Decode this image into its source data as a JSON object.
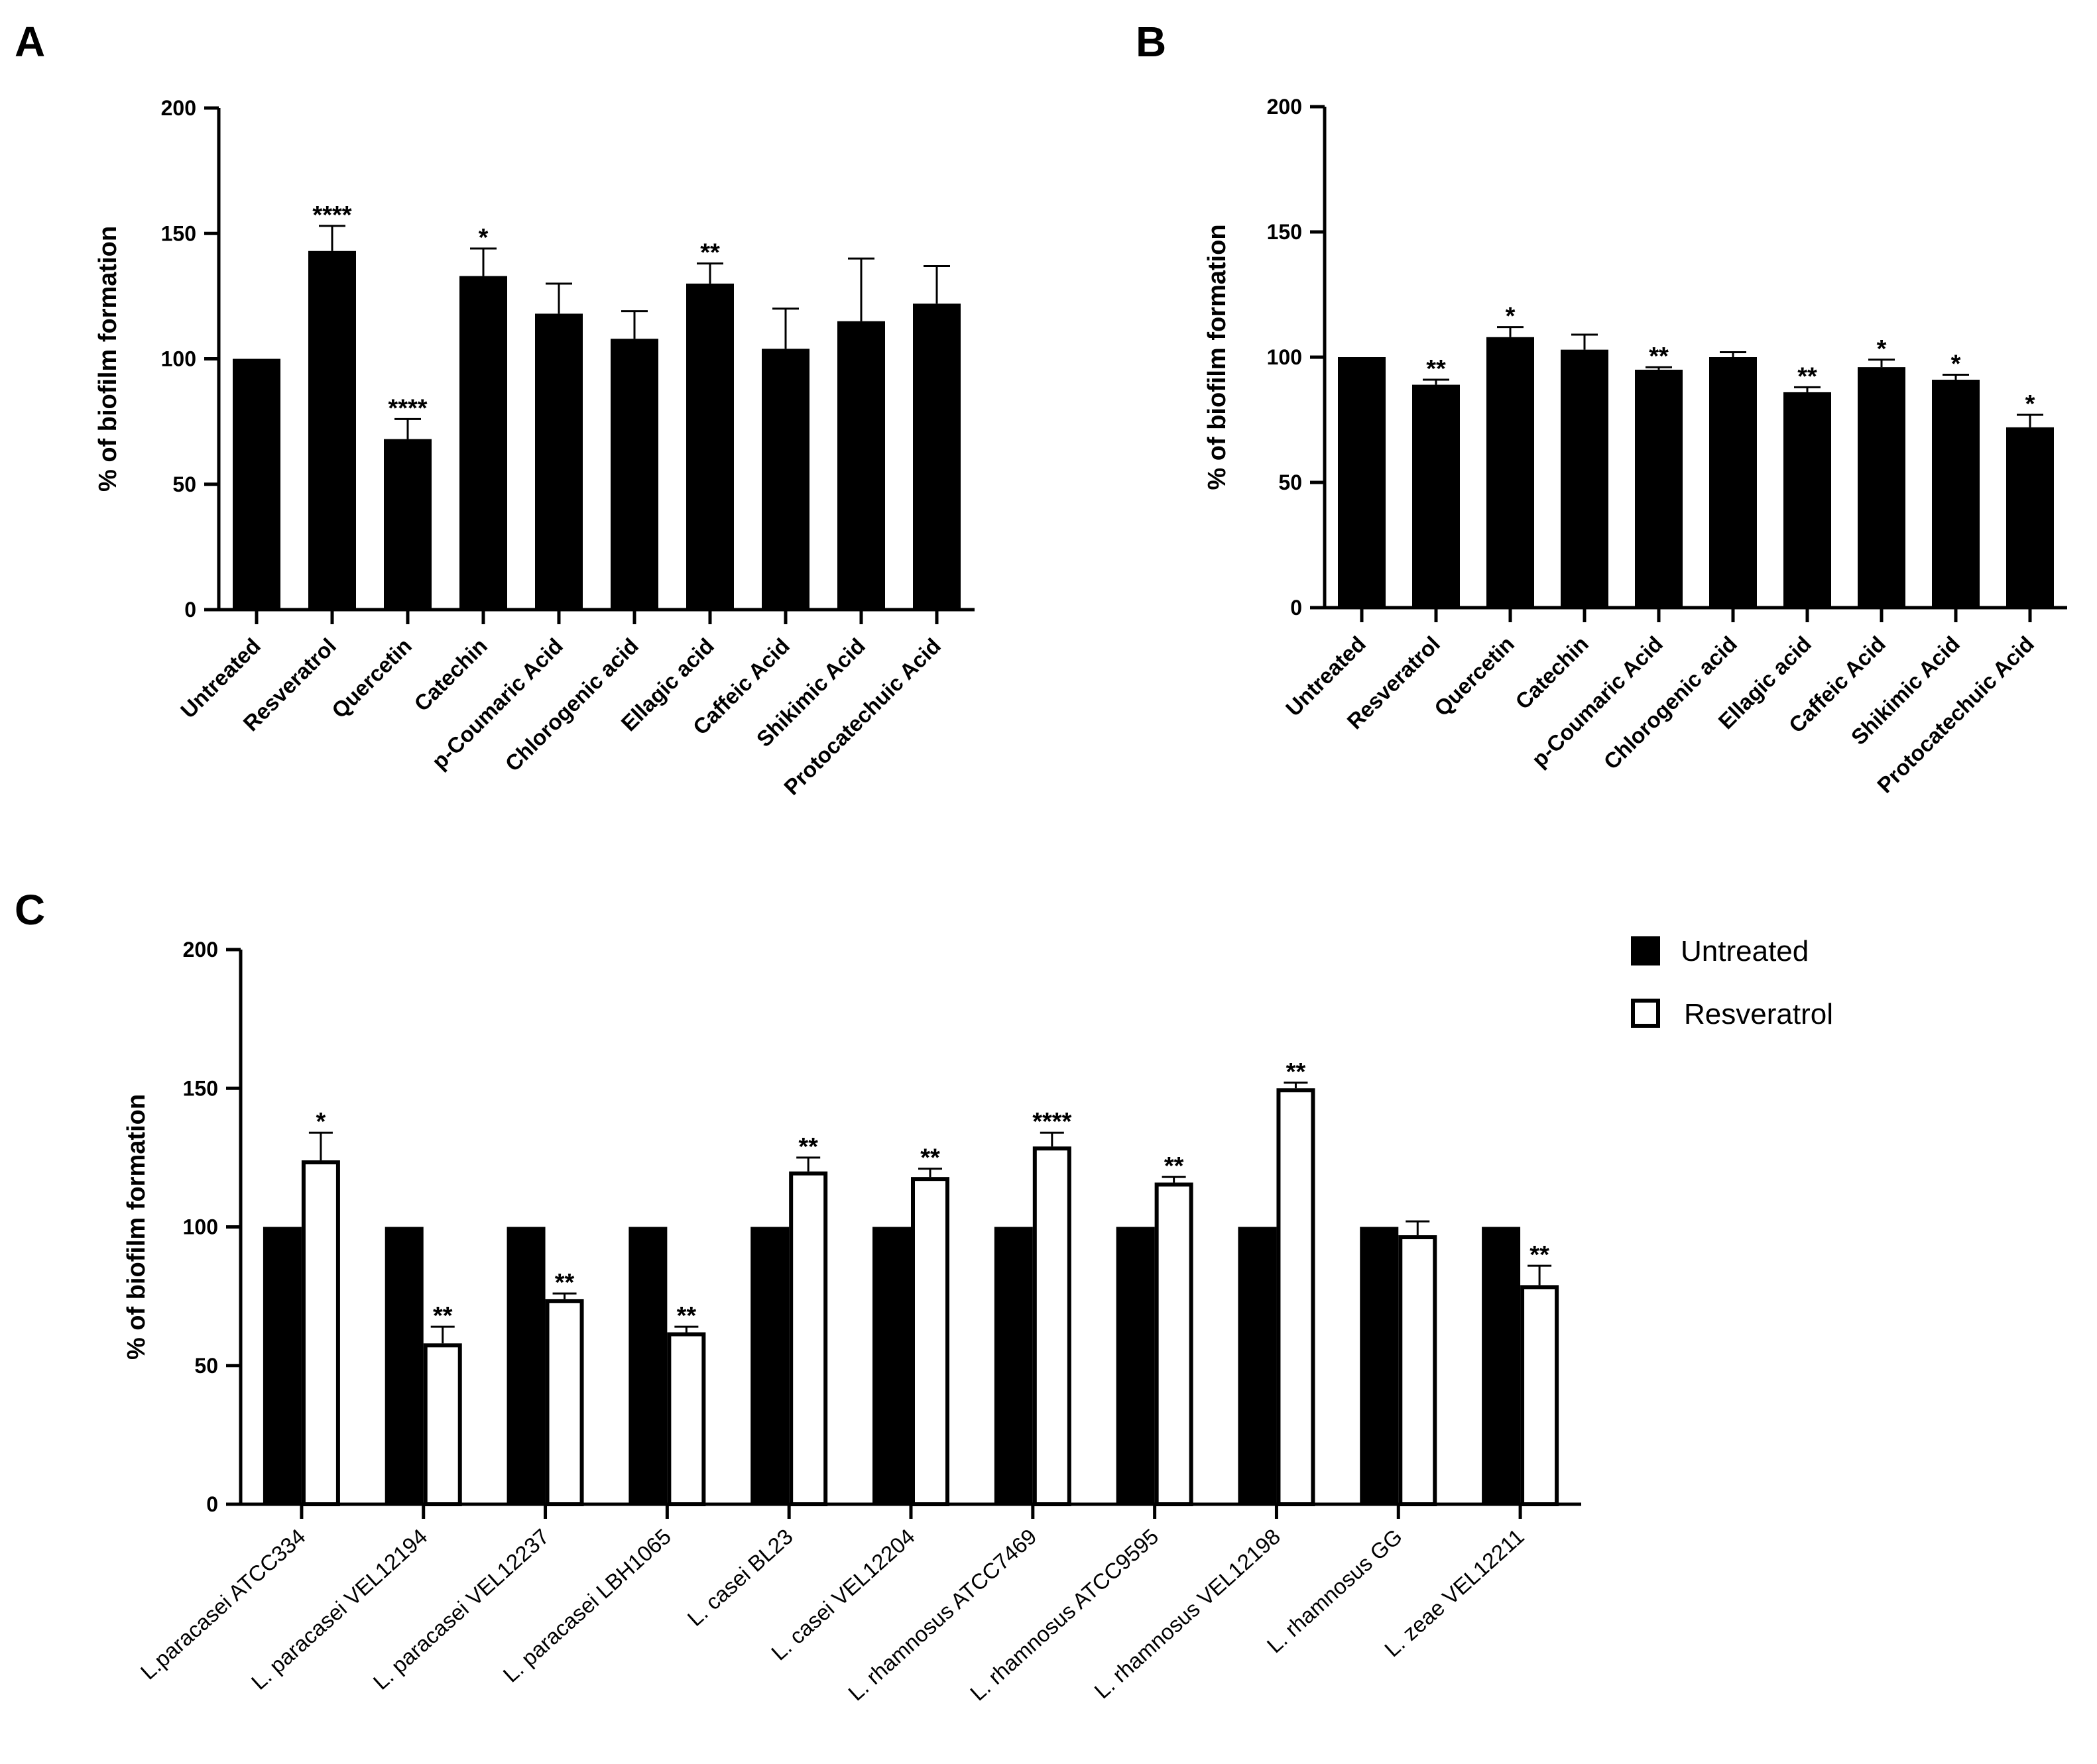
{
  "chart_data": [
    {
      "panel": "A",
      "type": "bar",
      "ylabel": "% of biofilm formation",
      "ylim": [
        0,
        200
      ],
      "yticks": [
        "0",
        "50",
        "100",
        "150",
        "200"
      ],
      "categories": [
        "Untreated",
        "Resveratrol",
        "Quercetin",
        "Catechin",
        "p-Coumaric Acid",
        "Chlorogenic acid",
        "Ellagic acid",
        "Caffeic Acid",
        "Shikimic Acid",
        "Protocatechuic Acid"
      ],
      "values": [
        100,
        143,
        68,
        133,
        118,
        108,
        130,
        104,
        115,
        122
      ],
      "errors": [
        0,
        10,
        8,
        11,
        12,
        11,
        8,
        16,
        25,
        15
      ],
      "significance": [
        "",
        "****",
        "****",
        "*",
        "",
        "",
        "**",
        "",
        "",
        ""
      ]
    },
    {
      "panel": "B",
      "type": "bar",
      "ylabel": "% of biofilm formation",
      "ylim": [
        0,
        200
      ],
      "yticks": [
        "0",
        "50",
        "100",
        "150",
        "200"
      ],
      "categories": [
        "Untreated",
        "Resveratrol",
        "Quercetin",
        "Catechin",
        "p-Coumaric Acid",
        "Chlorogenic acid",
        "Ellagic acid",
        "Caffeic Acid",
        "Shikimic Acid",
        "Protocatechuic Acid"
      ],
      "values": [
        100,
        89,
        108,
        103,
        95,
        100,
        86,
        96,
        91,
        72
      ],
      "errors": [
        0,
        2,
        4,
        6,
        1,
        2,
        2,
        3,
        2,
        5
      ],
      "significance": [
        "",
        "**",
        "*",
        "",
        "**",
        "",
        "**",
        "*",
        "*",
        "*"
      ]
    },
    {
      "panel": "C",
      "type": "bar",
      "ylabel": "% of biofilm formation",
      "ylim": [
        0,
        200
      ],
      "yticks": [
        "0",
        "50",
        "100",
        "150",
        "200"
      ],
      "categories": [
        "L.paracasei ATCC334",
        "L. paracasei VEL12194",
        "L. paracasei VEL12237",
        "L. paracasei LBH1065",
        "L. casei BL23",
        "L. casei VEL12204",
        "L. rhamnosus ATCC7469",
        "L. rhamnosus ATCC9595",
        "L. rhamnosus VEL12198",
        "L. rhamnosus GG",
        "L. zeae VEL12211"
      ],
      "legend": [
        "Untreated",
        "Resveratrol"
      ],
      "series": [
        {
          "name": "Untreated",
          "values": [
            100,
            100,
            100,
            100,
            100,
            100,
            100,
            100,
            100,
            100,
            100
          ],
          "errors": [
            0,
            0,
            0,
            0,
            0,
            0,
            0,
            0,
            0,
            0,
            0
          ]
        },
        {
          "name": "Resveratrol",
          "values": [
            124,
            58,
            74,
            62,
            120,
            118,
            129,
            116,
            150,
            97,
            79
          ],
          "errors": [
            10,
            6,
            2,
            2,
            5,
            3,
            5,
            2,
            2,
            5,
            7
          ]
        }
      ],
      "significance": [
        "*",
        "**",
        "**",
        "**",
        "**",
        "**",
        "****",
        "**",
        "**",
        "",
        "**"
      ]
    }
  ]
}
